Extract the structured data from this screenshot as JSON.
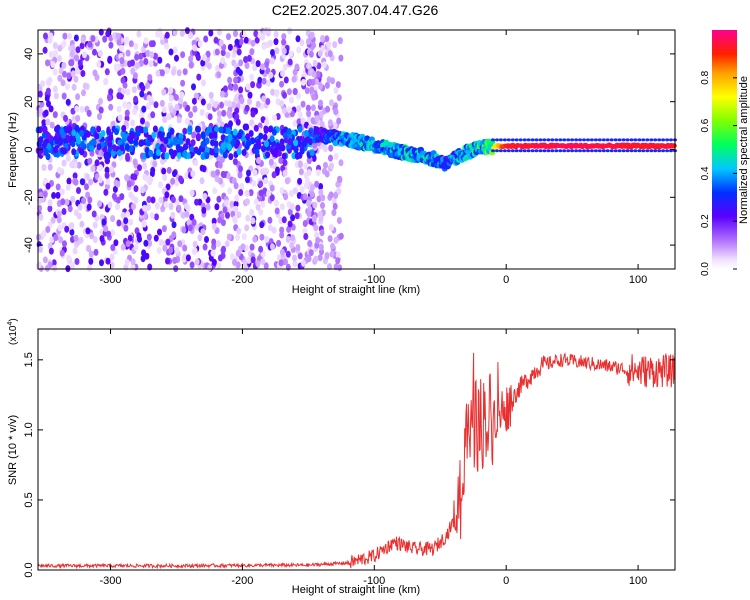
{
  "title": "C2E2.2025.307.04.47.G26",
  "chart_data": [
    {
      "type": "heatmap",
      "name": "spectrogram",
      "xlabel": "Height of straight line (km)",
      "ylabel": "Frequency (Hz)",
      "xlim": [
        -355,
        128
      ],
      "ylim": [
        -50,
        50
      ],
      "xticks": [
        -300,
        -200,
        -100,
        0,
        100
      ],
      "yticks": [
        -40,
        -20,
        0,
        20,
        40
      ],
      "colorbar": {
        "label": "Normalized spectral amplitude",
        "range": [
          0,
          1
        ],
        "ticks": [
          0.0,
          0.2,
          0.4,
          0.6,
          0.8
        ],
        "tick_labels": [
          "0.0",
          "0.2",
          "0.4",
          "0.6",
          "0.8"
        ]
      },
      "ridge": [
        {
          "x": -140,
          "y": 6,
          "a": 0.35
        },
        {
          "x": -120,
          "y": 4,
          "a": 0.45
        },
        {
          "x": -100,
          "y": 2,
          "a": 0.5
        },
        {
          "x": -80,
          "y": -1,
          "a": 0.5
        },
        {
          "x": -60,
          "y": -3,
          "a": 0.5
        },
        {
          "x": -45,
          "y": -6,
          "a": 0.4
        },
        {
          "x": -30,
          "y": -1,
          "a": 0.5
        },
        {
          "x": -15,
          "y": 1,
          "a": 0.6
        },
        {
          "x": 0,
          "y": 1.5,
          "a": 0.95
        },
        {
          "x": 50,
          "y": 1.5,
          "a": 0.98
        },
        {
          "x": 100,
          "y": 1.5,
          "a": 0.95
        },
        {
          "x": 128,
          "y": 1.5,
          "a": 0.95
        }
      ]
    },
    {
      "type": "line",
      "name": "snr",
      "xlabel": "Height of straight line (km)",
      "ylabel": "SNR (10 * v/v)",
      "scale_label": "(x10",
      "scale_exp": "4",
      "scale_close": ")",
      "xlim": [
        -355,
        128
      ],
      "ylim": [
        0,
        1.72
      ],
      "xticks": [
        -300,
        -200,
        -100,
        0,
        100
      ],
      "yticks": [
        0.0,
        0.5,
        1.0,
        1.5
      ],
      "ytick_labels": [
        "0.0",
        "0.5",
        "1.0",
        "1.5"
      ],
      "color": "#e83030",
      "envelope": [
        [
          -355,
          0.03
        ],
        [
          -250,
          0.03
        ],
        [
          -150,
          0.035
        ],
        [
          -120,
          0.05
        ],
        [
          -100,
          0.1
        ],
        [
          -85,
          0.2
        ],
        [
          -70,
          0.15
        ],
        [
          -55,
          0.15
        ],
        [
          -45,
          0.25
        ],
        [
          -35,
          0.45
        ],
        [
          -30,
          0.85
        ],
        [
          -25,
          1.0
        ],
        [
          -20,
          1.05
        ],
        [
          -10,
          1.1
        ],
        [
          0,
          1.15
        ],
        [
          10,
          1.3
        ],
        [
          25,
          1.45
        ],
        [
          40,
          1.5
        ],
        [
          60,
          1.48
        ],
        [
          80,
          1.45
        ],
        [
          100,
          1.42
        ],
        [
          128,
          1.42
        ]
      ]
    }
  ]
}
